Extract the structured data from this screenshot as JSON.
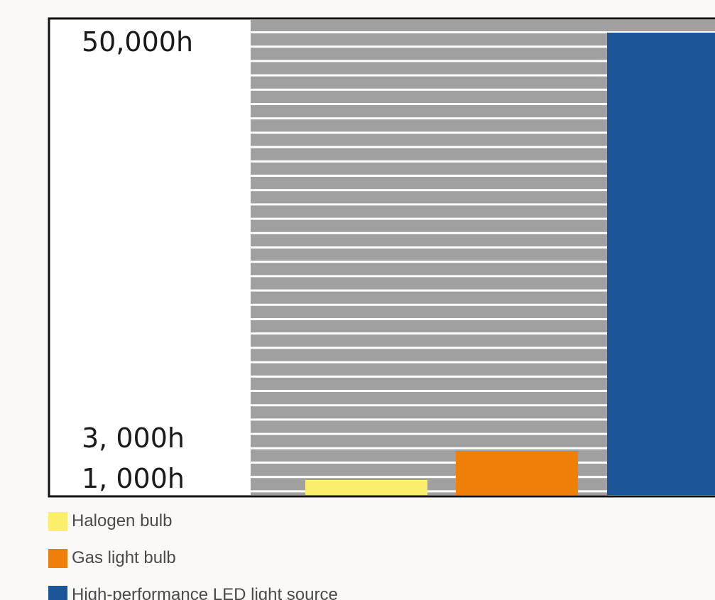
{
  "chart_data": {
    "type": "bar",
    "categories": [
      "Halogen bulb",
      "Gas light bulb",
      "High-performance LED light source"
    ],
    "values": [
      1000,
      3000,
      50000
    ],
    "colors": [
      "#fbee6b",
      "#f07f0a",
      "#1c5699"
    ],
    "background_color": "#a0a0a0",
    "stripe_color": "#ffffff",
    "y_tick_labels": [
      "50,000h",
      "3, 000h",
      "1, 000h"
    ],
    "y_tick_values": [
      50000,
      3000,
      1000
    ],
    "ylim": [
      0,
      50000
    ],
    "grid": false,
    "legend_position": "bottom-left",
    "title": "",
    "xlabel": "",
    "ylabel": ""
  }
}
